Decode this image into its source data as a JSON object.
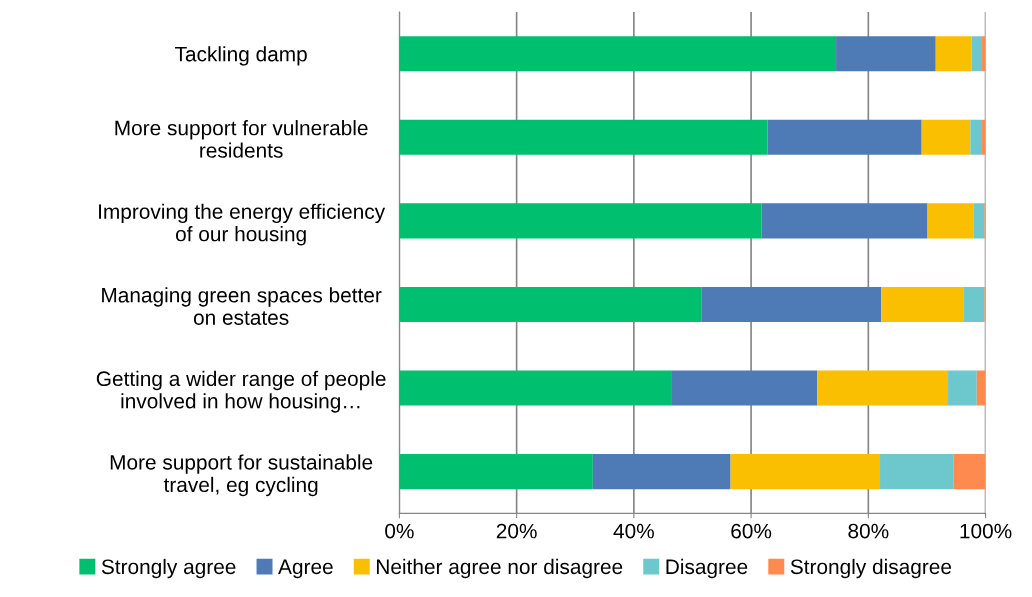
{
  "chart_data": {
    "type": "bar",
    "orientation": "horizontal",
    "stacked": true,
    "categories": [
      "Tackling damp",
      "More support for vulnerable\nresidents",
      "Improving the energy efficiency\nof our housing",
      "Managing green spaces better\non estates",
      "Getting a wider range of people\ninvolved in how housing…",
      "More support for sustainable\ntravel, eg cycling"
    ],
    "series": [
      {
        "name": "Strongly agree",
        "color": "#00bf6f",
        "values": [
          74.5,
          62.8,
          61.8,
          51.5,
          46.5,
          33.0
        ]
      },
      {
        "name": "Agree",
        "color": "#4e7ab5",
        "values": [
          17.0,
          26.3,
          28.3,
          30.7,
          24.8,
          23.5
        ]
      },
      {
        "name": "Neither agree nor disagree",
        "color": "#f9bf00",
        "values": [
          6.1,
          8.3,
          7.9,
          14.0,
          22.3,
          25.5
        ]
      },
      {
        "name": "Disagree",
        "color": "#6cc8cc",
        "values": [
          1.8,
          2.0,
          1.8,
          3.6,
          4.9,
          12.5
        ]
      },
      {
        "name": "Strongly disagree",
        "color": "#ff8a50",
        "values": [
          0.6,
          0.6,
          0.2,
          0.2,
          1.5,
          5.5
        ]
      }
    ],
    "xlim": [
      0,
      100
    ],
    "xticks": [
      {
        "value": 0,
        "label": "0%"
      },
      {
        "value": 20,
        "label": "20%"
      },
      {
        "value": 40,
        "label": "40%"
      },
      {
        "value": 60,
        "label": "60%"
      },
      {
        "value": 80,
        "label": "80%"
      },
      {
        "value": 100,
        "label": "100%"
      }
    ],
    "grid": "x",
    "legend": "bottom"
  }
}
